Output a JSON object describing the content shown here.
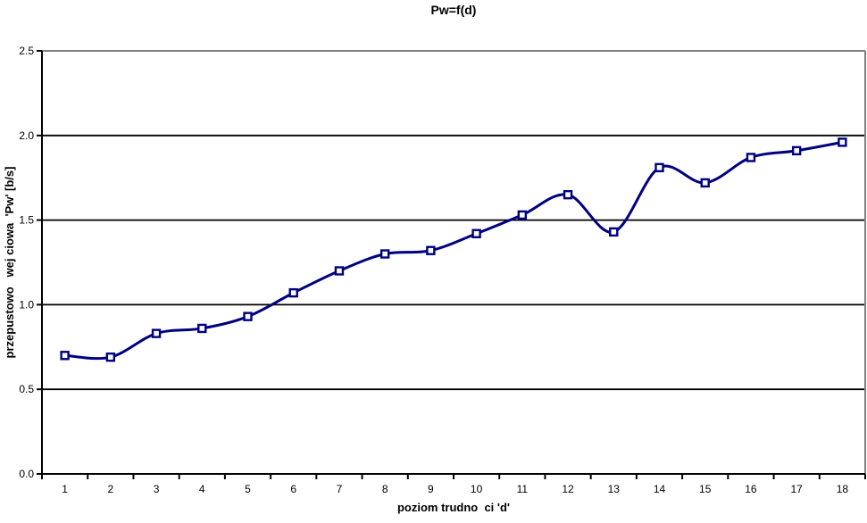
{
  "chart_data": {
    "type": "line",
    "title": "Pw=f(d)",
    "xlabel": "poziom trudno  ci 'd'",
    "ylabel": "przepustowo   wej ciowa  'Pw' [b/s]",
    "categories": [
      "1",
      "2",
      "3",
      "4",
      "5",
      "6",
      "7",
      "8",
      "9",
      "10",
      "11",
      "12",
      "13",
      "14",
      "15",
      "16",
      "17",
      "18"
    ],
    "values": [
      0.7,
      0.69,
      0.83,
      0.86,
      0.93,
      1.07,
      1.2,
      1.3,
      1.32,
      1.42,
      1.53,
      1.65,
      1.43,
      1.81,
      1.72,
      1.87,
      1.91,
      1.96
    ],
    "ylim": [
      0,
      2.5
    ],
    "ytick_step": 0.5,
    "ytick_labels": [
      "0.0",
      "0.5",
      "1.0",
      "1.5",
      "2.0",
      "2.5"
    ],
    "grid": true,
    "legend_position": "none",
    "line_style": "smoothed",
    "marker": "square",
    "colors": {
      "line": "#000080",
      "marker_fill": "#ffffff",
      "grid": "#000000",
      "axis": "#000000",
      "frame": "#808080",
      "text": "#000000",
      "background": "#ffffff"
    }
  }
}
